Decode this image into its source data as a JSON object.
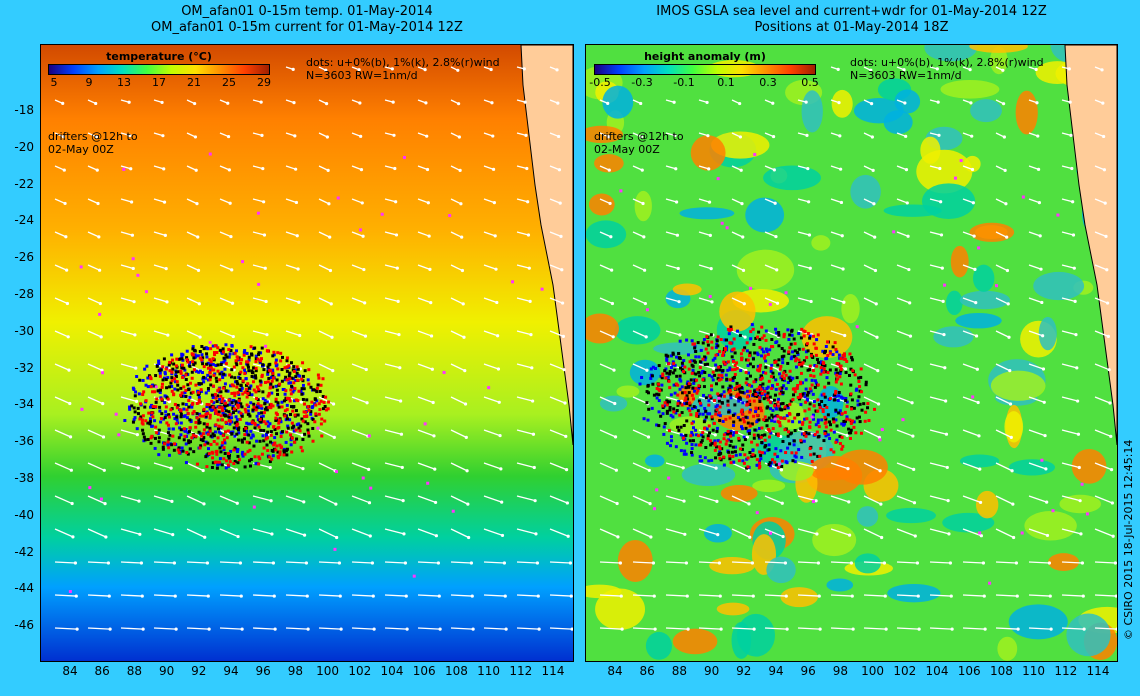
{
  "left_panel": {
    "title_line1": "OM_afan01 0-15m temp. 01-May-2014",
    "title_line2": "OM_afan01 0-15m current for 01-May-2014 12Z",
    "legend_title": "temperature (°C)",
    "legend_ticks": [
      "5",
      "9",
      "13",
      "17",
      "21",
      "25",
      "29"
    ],
    "note_dots": "dots: u+0%(b), 1%(k), 2.8%(r)wind",
    "note_n": "N=3603 RW=1nm/d",
    "note_drifters_1": "drifters @12h to",
    "note_drifters_2": "02-May 00Z"
  },
  "right_panel": {
    "title_line1": "IMOS GSLA sea level and current+wdr for 01-May-2014 12Z",
    "title_line2": "Positions at 01-May-2014 18Z",
    "legend_title": "height anomaly (m)",
    "legend_ticks": [
      "-0.5",
      "-0.3",
      "-0.1",
      "0.1",
      "0.3",
      "0.5"
    ],
    "note_dots": "dots: u+0%(b), 1%(k), 2.8%(r)wind",
    "note_n": "N=3603 RW=1nm/d",
    "note_drifters_1": "drifters @12h to",
    "note_drifters_2": "02-May 00Z"
  },
  "axes": {
    "y_ticks": [
      "-18",
      "-20",
      "-22",
      "-24",
      "-26",
      "-28",
      "-30",
      "-32",
      "-34",
      "-36",
      "-38",
      "-40",
      "-42",
      "-44",
      "-46"
    ],
    "x_ticks": [
      "84",
      "86",
      "88",
      "90",
      "92",
      "94",
      "96",
      "98",
      "100",
      "102",
      "104",
      "106",
      "108",
      "110",
      "112",
      "114"
    ]
  },
  "colors": {
    "background": "#33ccff",
    "land": "#ffcc99",
    "blue_drifters": "#0000ff",
    "black_drifters": "#000000",
    "red_drifters": "#ff0000",
    "magenta_points": "#ff33ff",
    "arrows": "#ffffff"
  },
  "copyright": "© CSIRO 2015   18-Jul-2015 12:45:14"
}
